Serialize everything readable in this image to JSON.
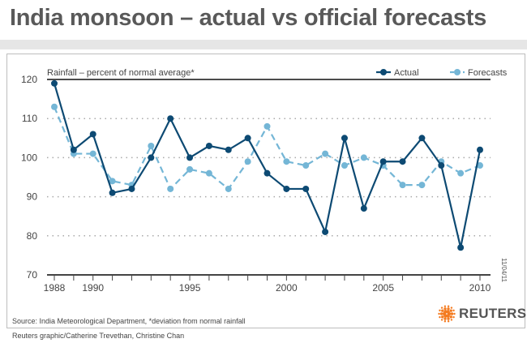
{
  "title": "India monsoon – actual vs official forecasts",
  "source": "Source: India Meteorological Department, *deviation from normal rainfall",
  "credit": "Reuters graphic/Catherine Trevethan, Christine Chan",
  "date_stamp": "11/04/11",
  "logo": {
    "text": "REUTERS",
    "color": "#f47b20"
  },
  "chart_data": {
    "type": "line",
    "title": "India monsoon – actual vs official forecasts",
    "ylabel": "Rainfall – percent of normal average*",
    "ylim": [
      70,
      120
    ],
    "yticks": [
      70,
      80,
      90,
      100,
      110,
      120
    ],
    "xticks": [
      1988,
      1990,
      1995,
      2000,
      2005,
      2010
    ],
    "grid": "horizontal dotted",
    "legend_placement": "top-right",
    "x": [
      1988,
      1989,
      1990,
      1991,
      1992,
      1993,
      1994,
      1995,
      1996,
      1997,
      1998,
      1999,
      2000,
      2001,
      2002,
      2003,
      2004,
      2005,
      2006,
      2007,
      2008,
      2009,
      2010
    ],
    "series": [
      {
        "name": "Actual",
        "color": "#0d4a73",
        "style": "solid",
        "values": [
          119,
          102,
          106,
          91,
          92,
          100,
          110,
          100,
          103,
          102,
          105,
          96,
          92,
          92,
          81,
          105,
          87,
          99,
          99,
          105,
          98,
          77,
          102
        ]
      },
      {
        "name": "Forecasts",
        "color": "#74b6d6",
        "style": "dashed",
        "values": [
          113,
          101,
          101,
          94,
          93,
          103,
          92,
          97,
          96,
          92,
          99,
          108,
          99,
          98,
          101,
          98,
          100,
          98,
          93,
          93,
          99,
          96,
          98
        ]
      }
    ]
  }
}
